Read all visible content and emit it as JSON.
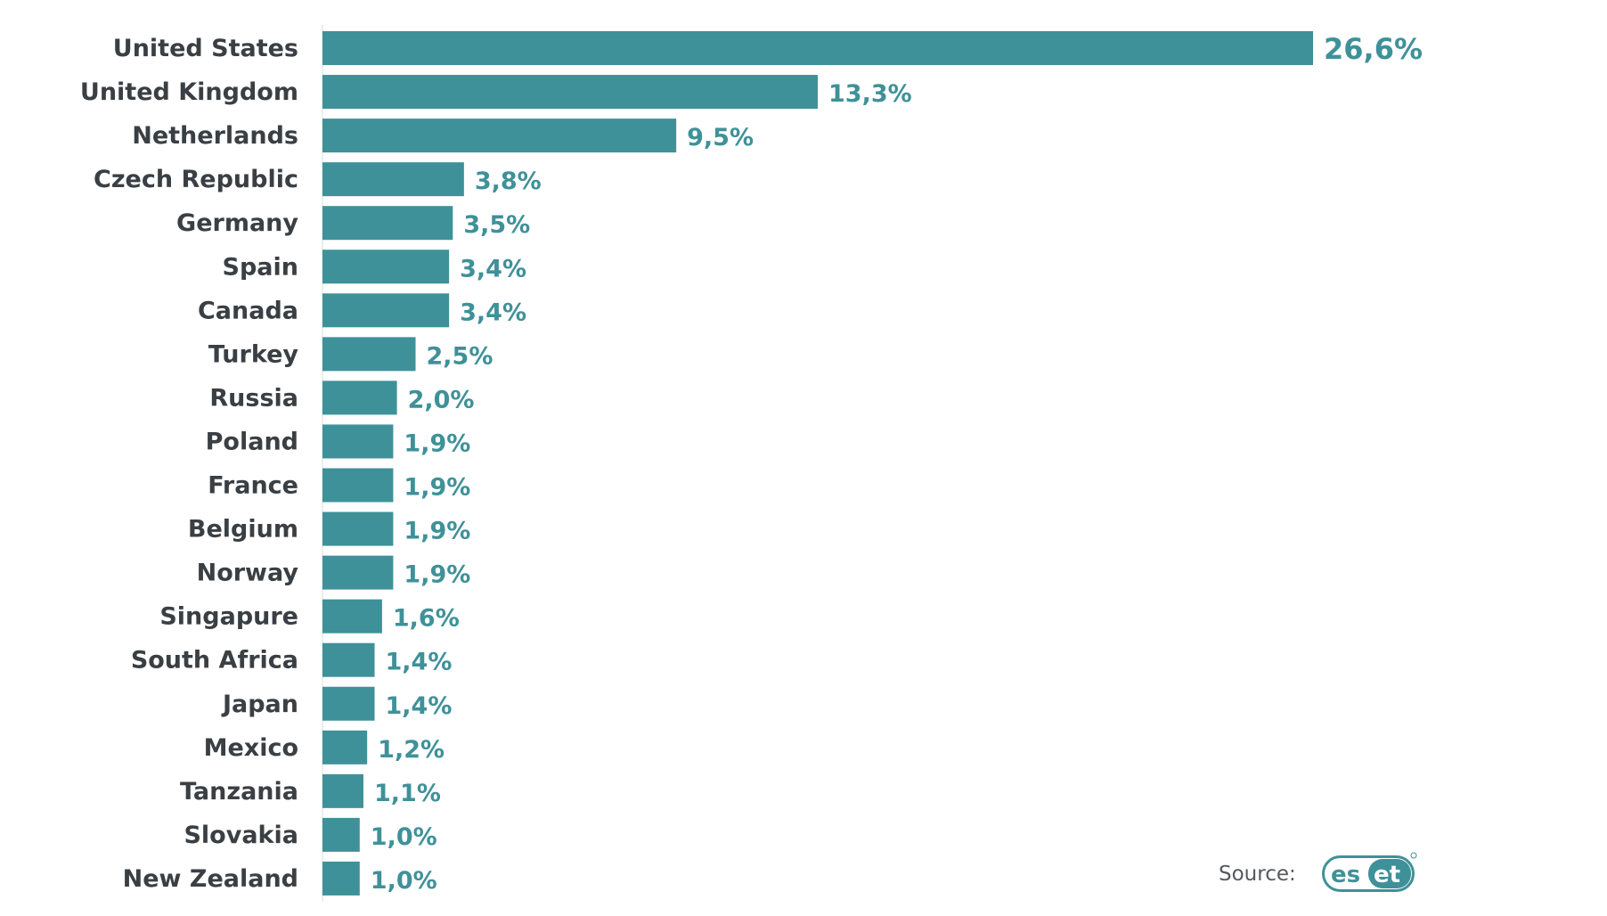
{
  "chart_data": {
    "type": "bar",
    "orientation": "horizontal",
    "categories": [
      "United States",
      "United Kingdom",
      "Netherlands",
      "Czech Republic",
      "Germany",
      "Spain",
      "Canada",
      "Turkey",
      "Russia",
      "Poland",
      "France",
      "Belgium",
      "Norway",
      "Singapure",
      "South Africa",
      "Japan",
      "Mexico",
      "Tanzania",
      "Slovakia",
      "New Zealand"
    ],
    "values": [
      26.6,
      13.3,
      9.5,
      3.8,
      3.5,
      3.4,
      3.4,
      2.5,
      2.0,
      1.9,
      1.9,
      1.9,
      1.9,
      1.6,
      1.4,
      1.4,
      1.2,
      1.1,
      1.0,
      1.0
    ],
    "value_labels": [
      "26,6%",
      "13,3%",
      "9,5%",
      "3,8%",
      "3,5%",
      "3,4%",
      "3,4%",
      "2,5%",
      "2,0%",
      "1,9%",
      "1,9%",
      "1,9%",
      "1,9%",
      "1,6%",
      "1,4%",
      "1,4%",
      "1,2%",
      "1,1%",
      "1,0%",
      "1,0%"
    ],
    "xlim": [
      0,
      26.6
    ],
    "grid": false,
    "bar_color": "#3f9199",
    "label_color": "#3f9199",
    "category_color": "#3a3f44"
  },
  "footer": {
    "source_label": "Source:",
    "logo_text": "eset",
    "logo_color": "#3f9199"
  }
}
